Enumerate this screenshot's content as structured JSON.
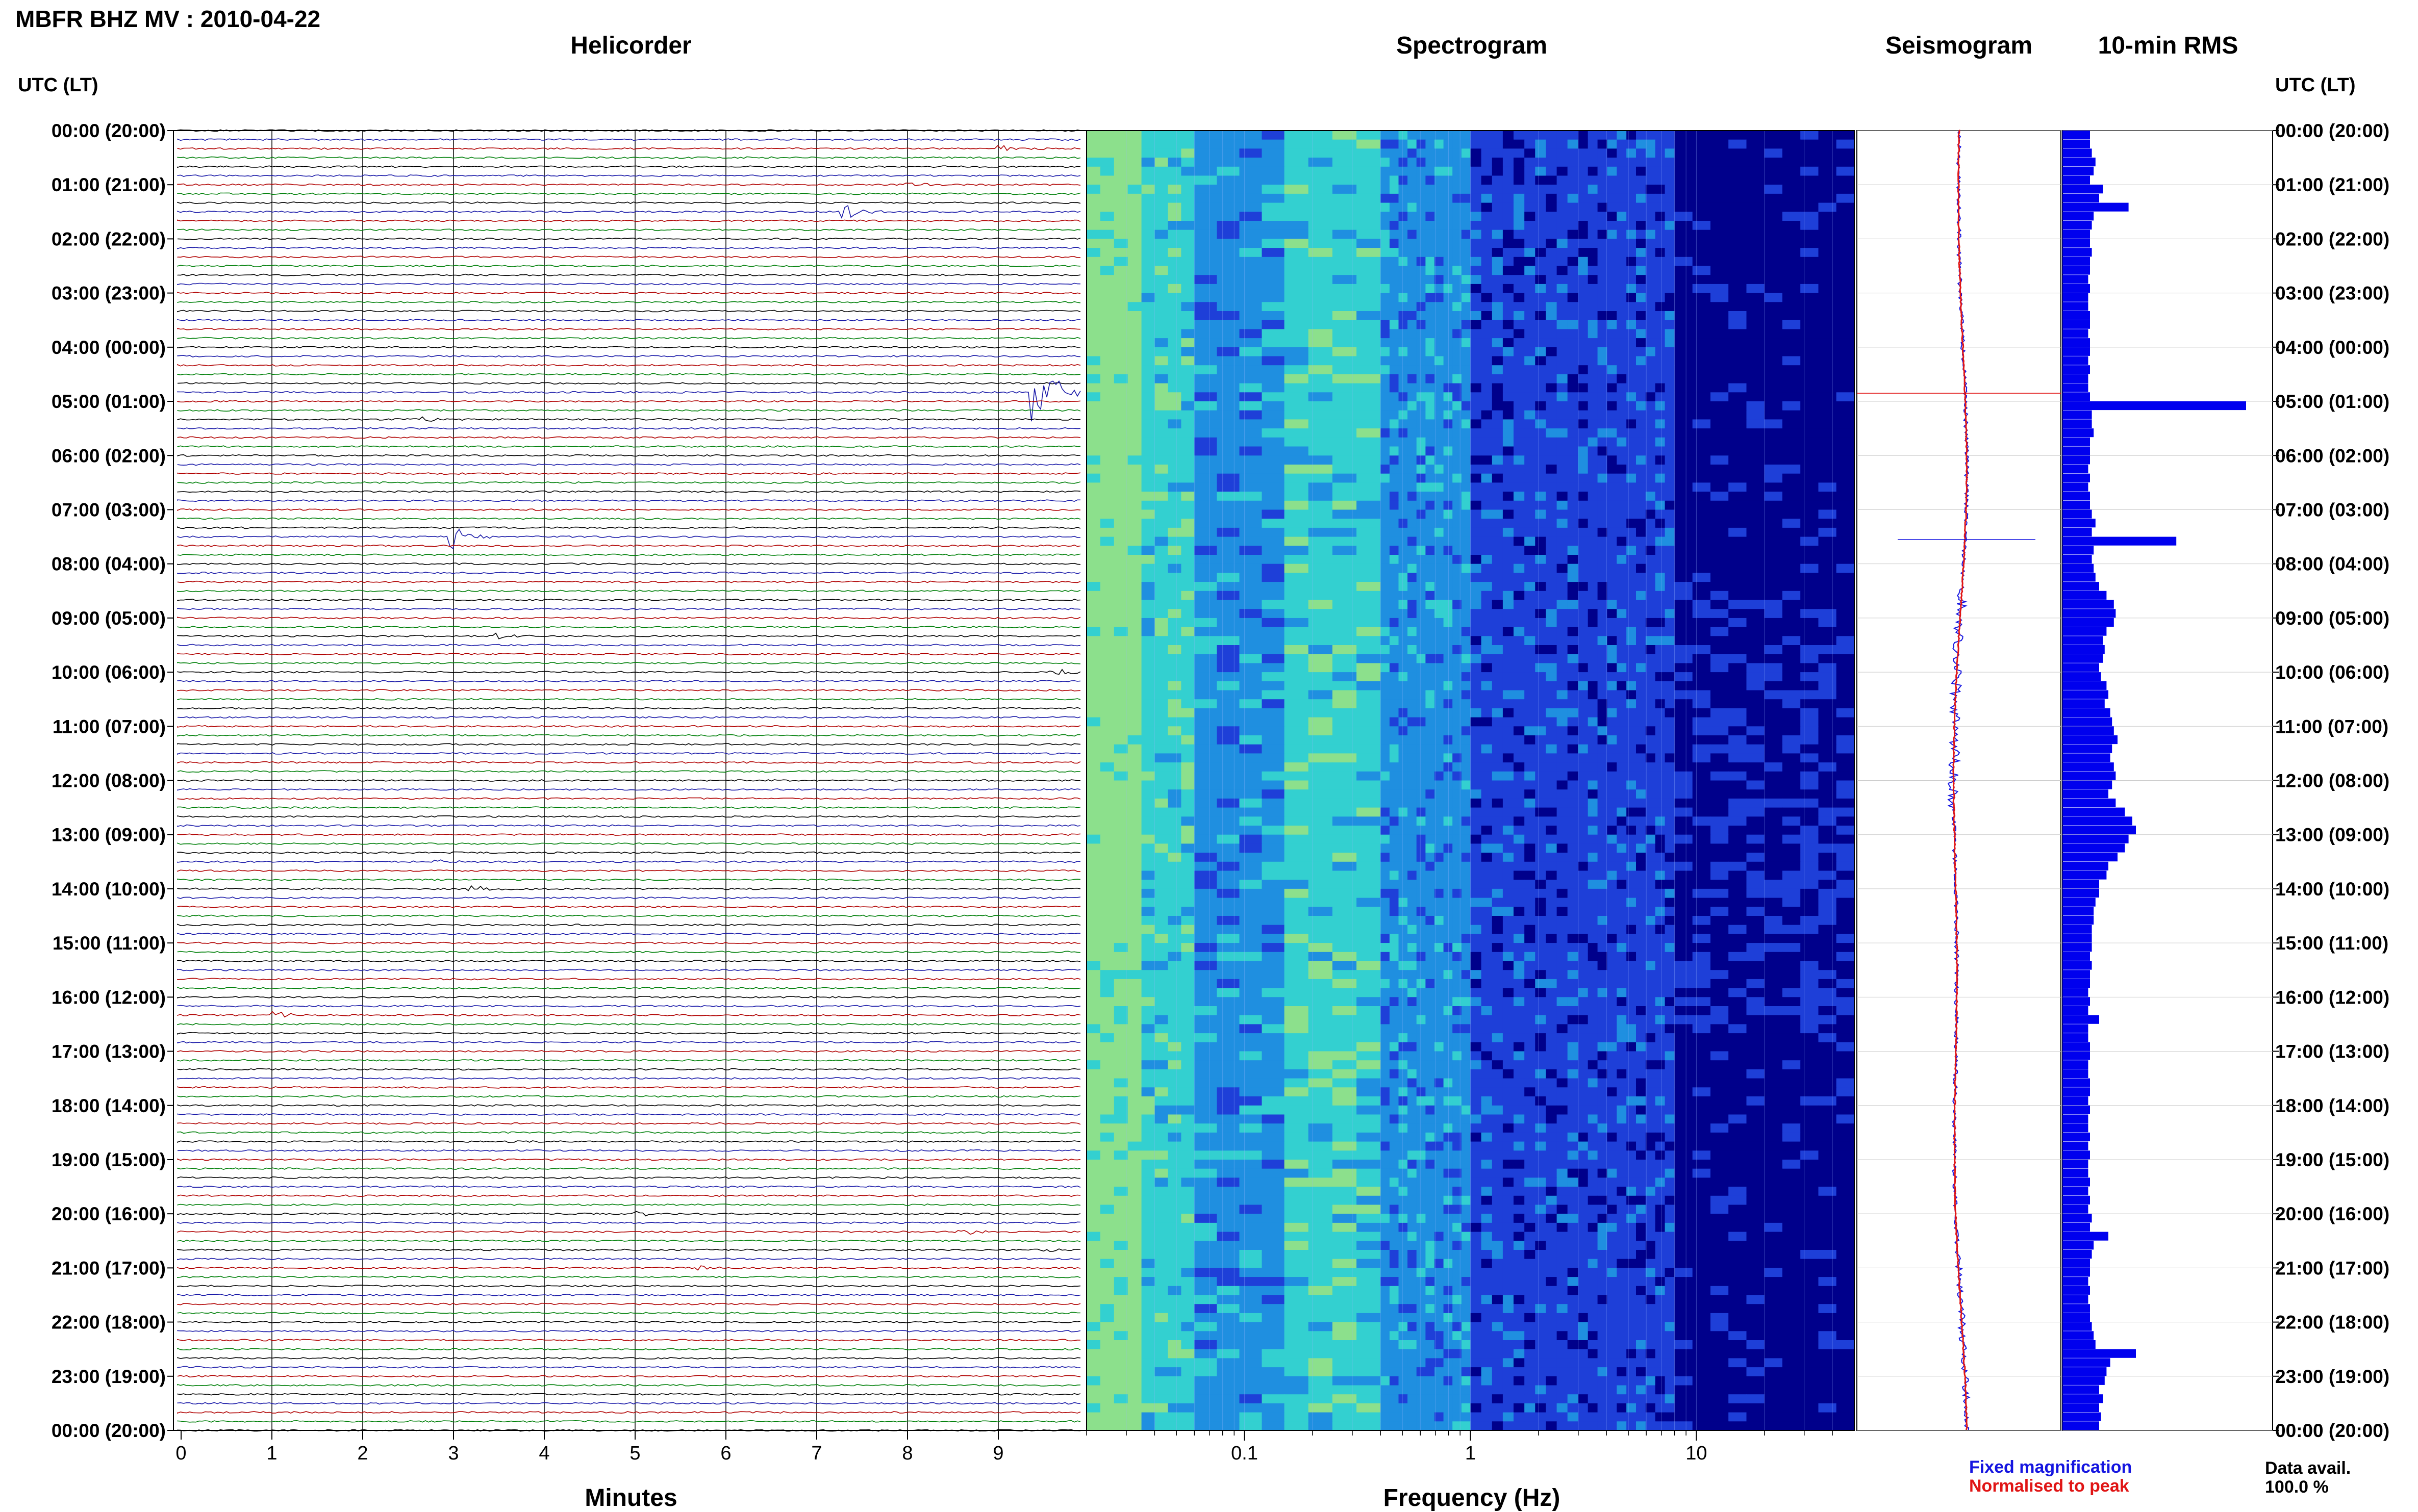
{
  "title": "MBFR BHZ MV : 2010-04-22",
  "panels": {
    "helicorder": "Helicorder",
    "spectrogram": "Spectrogram",
    "seismogram": "Seismogram",
    "rms": "10-min RMS"
  },
  "utc_header_left": "UTC (LT)",
  "utc_header_right": "UTC (LT)",
  "time_labels": [
    "00:00 (20:00)",
    "01:00 (21:00)",
    "02:00 (22:00)",
    "03:00 (23:00)",
    "04:00 (00:00)",
    "05:00 (01:00)",
    "06:00 (02:00)",
    "07:00 (03:00)",
    "08:00 (04:00)",
    "09:00 (05:00)",
    "10:00 (06:00)",
    "11:00 (07:00)",
    "12:00 (08:00)",
    "13:00 (09:00)",
    "14:00 (10:00)",
    "15:00 (11:00)",
    "16:00 (12:00)",
    "17:00 (13:00)",
    "18:00 (14:00)",
    "19:00 (15:00)",
    "20:00 (16:00)",
    "21:00 (17:00)",
    "22:00 (18:00)",
    "23:00 (19:00)",
    "00:00 (20:00)"
  ],
  "helicorder_xlabel": "Minutes",
  "minute_ticks": [
    "0",
    "1",
    "2",
    "3",
    "4",
    "5",
    "6",
    "7",
    "8",
    "9"
  ],
  "spectrogram_xlabel": "Frequency (Hz)",
  "freq_ticks": [
    "0.1",
    "1",
    "10"
  ],
  "legend": {
    "fixed": "Fixed magnification",
    "normalised": "Normalised to peak"
  },
  "data_availability": {
    "label": "Data avail.",
    "value": "100.0 %"
  },
  "colors": {
    "trace_cycle": [
      "#000000",
      "#1a1aa8",
      "#b00000",
      "#00800a"
    ],
    "rms_bar": "#0000ee",
    "seismogram_fixed": "#1515e0",
    "seismogram_norm": "#e01515"
  },
  "chart_data": [
    {
      "type": "line",
      "panel": "helicorder",
      "xlabel": "Minutes",
      "xlim": [
        0,
        10
      ],
      "ylim": [
        "00:00",
        "24:00"
      ],
      "lines_per_hour": 6,
      "line_minutes": 10,
      "events": [
        {
          "hour": 0.35,
          "minute": 9.0,
          "amp": 0.3
        },
        {
          "hour": 1.0,
          "minute": 8.0,
          "amp": 0.3
        },
        {
          "hour": 1.5,
          "minute": 7.3,
          "amp": 0.6
        },
        {
          "hour": 4.9,
          "minute": 9.4,
          "amp": 3.5
        },
        {
          "hour": 5.3,
          "minute": 2.7,
          "amp": 0.2
        },
        {
          "hour": 7.5,
          "minute": 3.0,
          "amp": 0.9
        },
        {
          "hour": 9.35,
          "minute": 3.5,
          "amp": 0.2
        },
        {
          "hour": 10.0,
          "minute": 9.6,
          "amp": 0.3
        },
        {
          "hour": 13.5,
          "minute": 2.8,
          "amp": 0.2
        },
        {
          "hour": 14.0,
          "minute": 3.2,
          "amp": 0.3
        },
        {
          "hour": 16.3,
          "minute": 1.0,
          "amp": 0.3
        },
        {
          "hour": 20.0,
          "minute": 5.0,
          "amp": 0.25
        },
        {
          "hour": 20.35,
          "minute": 8.6,
          "amp": 0.3
        },
        {
          "hour": 20.7,
          "minute": 9.5,
          "amp": 0.3
        },
        {
          "hour": 21.0,
          "minute": 5.7,
          "amp": 0.2
        }
      ]
    },
    {
      "type": "heatmap",
      "panel": "spectrogram",
      "xlabel": "Frequency (Hz)",
      "xscale": "log",
      "xlim": [
        0.02,
        50
      ],
      "colormap": [
        "#00008b",
        "#1e3fd8",
        "#1f8fe0",
        "#33d0d0",
        "#8ce08c"
      ]
    },
    {
      "type": "line",
      "panel": "seismogram",
      "series": [
        {
          "name": "Fixed magnification"
        },
        {
          "name": "Normalised to peak"
        }
      ]
    },
    {
      "type": "bar",
      "panel": "10-min RMS",
      "orientation": "horizontal",
      "bin_minutes": 10,
      "values": [
        0.15,
        0.15,
        0.16,
        0.18,
        0.17,
        0.15,
        0.22,
        0.2,
        0.36,
        0.17,
        0.16,
        0.15,
        0.15,
        0.16,
        0.15,
        0.15,
        0.14,
        0.15,
        0.14,
        0.14,
        0.15,
        0.15,
        0.14,
        0.15,
        0.15,
        0.14,
        0.15,
        0.14,
        0.14,
        0.15,
        1.0,
        0.16,
        0.16,
        0.17,
        0.15,
        0.15,
        0.15,
        0.14,
        0.15,
        0.14,
        0.15,
        0.15,
        0.16,
        0.18,
        0.16,
        0.62,
        0.17,
        0.16,
        0.17,
        0.18,
        0.2,
        0.24,
        0.28,
        0.29,
        0.28,
        0.24,
        0.22,
        0.23,
        0.22,
        0.2,
        0.21,
        0.24,
        0.25,
        0.23,
        0.26,
        0.27,
        0.28,
        0.3,
        0.27,
        0.26,
        0.28,
        0.29,
        0.27,
        0.25,
        0.29,
        0.34,
        0.38,
        0.4,
        0.36,
        0.34,
        0.3,
        0.25,
        0.24,
        0.2,
        0.2,
        0.18,
        0.17,
        0.17,
        0.16,
        0.16,
        0.16,
        0.15,
        0.16,
        0.15,
        0.15,
        0.14,
        0.15,
        0.14,
        0.2,
        0.14,
        0.14,
        0.15,
        0.15,
        0.14,
        0.14,
        0.15,
        0.15,
        0.14,
        0.15,
        0.14,
        0.14,
        0.15,
        0.14,
        0.15,
        0.14,
        0.14,
        0.15,
        0.14,
        0.15,
        0.14,
        0.16,
        0.15,
        0.25,
        0.17,
        0.16,
        0.15,
        0.15,
        0.14,
        0.15,
        0.14,
        0.15,
        0.15,
        0.16,
        0.17,
        0.18,
        0.4,
        0.26,
        0.24,
        0.23,
        0.2,
        0.22,
        0.2,
        0.21,
        0.2
      ]
    }
  ]
}
